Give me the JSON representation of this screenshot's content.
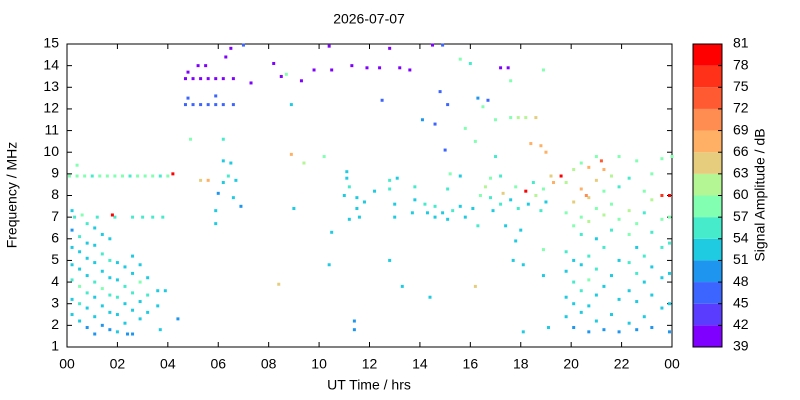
{
  "chart_data": {
    "type": "scatter",
    "title": "2026-07-07",
    "x_label": "UT Time / hrs",
    "y_label": "Frequency / MHz",
    "xlim": [
      0,
      24
    ],
    "xticks": [
      {
        "value": 0,
        "label": "00"
      },
      {
        "value": 2,
        "label": "02"
      },
      {
        "value": 4,
        "label": "04"
      },
      {
        "value": 6,
        "label": "06"
      },
      {
        "value": 8,
        "label": "08"
      },
      10,
      12,
      14,
      16,
      18,
      20,
      22,
      {
        "value": 24,
        "label": "00"
      }
    ],
    "ylim": [
      1,
      15
    ],
    "yticks": [
      1,
      2,
      3,
      4,
      5,
      6,
      7,
      8,
      9,
      10,
      11,
      12,
      13,
      14,
      15
    ],
    "colorbar": {
      "label": "Signal Amplitude / dB",
      "ticks": [
        39,
        42,
        45,
        48,
        51,
        54,
        57,
        60,
        63,
        66,
        69,
        72,
        75,
        78,
        81
      ],
      "colors": [
        "#8000ff",
        "#5a3cff",
        "#3c64ff",
        "#1e96f0",
        "#1ecbe1",
        "#46ebcb",
        "#82ffb0",
        "#b4f594",
        "#e6cd7d",
        "#ffb064",
        "#ff8c50",
        "#ff5a32",
        "#ff3219",
        "#ff0000"
      ]
    },
    "points": [
      [
        0.2,
        2.5,
        51
      ],
      [
        0.2,
        3.2,
        52
      ],
      [
        0.2,
        4.1,
        54
      ],
      [
        0.2,
        4.8,
        51
      ],
      [
        0.2,
        5.6,
        52
      ],
      [
        0.2,
        6.4,
        48
      ],
      [
        0.2,
        7.3,
        52
      ],
      [
        0.5,
        2.2,
        52
      ],
      [
        0.5,
        3.0,
        54
      ],
      [
        0.5,
        3.8,
        57
      ],
      [
        0.5,
        4.6,
        52
      ],
      [
        0.5,
        5.4,
        51
      ],
      [
        0.5,
        6.1,
        54
      ],
      [
        0.8,
        1.9,
        48
      ],
      [
        0.8,
        2.8,
        52
      ],
      [
        0.8,
        3.5,
        54
      ],
      [
        0.8,
        4.3,
        52
      ],
      [
        0.8,
        5.1,
        51
      ],
      [
        0.8,
        5.8,
        52
      ],
      [
        0.8,
        6.7,
        54
      ],
      [
        1.1,
        1.6,
        48
      ],
      [
        1.1,
        2.4,
        51
      ],
      [
        1.1,
        3.3,
        52
      ],
      [
        1.1,
        4.0,
        54
      ],
      [
        1.1,
        4.9,
        52
      ],
      [
        1.1,
        5.7,
        51
      ],
      [
        1.1,
        6.5,
        52
      ],
      [
        1.4,
        2.0,
        48
      ],
      [
        1.4,
        2.9,
        52
      ],
      [
        1.4,
        3.7,
        57
      ],
      [
        1.4,
        4.5,
        52
      ],
      [
        1.4,
        5.3,
        54
      ],
      [
        1.4,
        6.2,
        51
      ],
      [
        1.7,
        1.8,
        48
      ],
      [
        1.7,
        2.6,
        51
      ],
      [
        1.7,
        3.4,
        54
      ],
      [
        1.7,
        4.2,
        52
      ],
      [
        1.7,
        5.0,
        54
      ],
      [
        1.7,
        6.0,
        52
      ],
      [
        2.0,
        1.7,
        51
      ],
      [
        2.0,
        2.5,
        52
      ],
      [
        2.0,
        3.3,
        54
      ],
      [
        2.0,
        4.1,
        52
      ],
      [
        2.0,
        4.9,
        51
      ],
      [
        2.3,
        2.1,
        51
      ],
      [
        2.3,
        3.0,
        52
      ],
      [
        2.3,
        3.8,
        54
      ],
      [
        2.3,
        4.7,
        52
      ],
      [
        2.6,
        1.6,
        48
      ],
      [
        2.6,
        2.7,
        52
      ],
      [
        2.6,
        3.5,
        54
      ],
      [
        2.6,
        4.4,
        51
      ],
      [
        2.6,
        5.2,
        52
      ],
      [
        2.9,
        2.3,
        51
      ],
      [
        2.9,
        3.1,
        52
      ],
      [
        2.9,
        4.0,
        57
      ],
      [
        2.9,
        4.8,
        52
      ],
      [
        3.2,
        2.6,
        52
      ],
      [
        3.2,
        3.4,
        54
      ],
      [
        3.2,
        4.2,
        51
      ],
      [
        3.6,
        3.6,
        52
      ],
      [
        3.6,
        2.9,
        51
      ],
      [
        2.4,
        1.6,
        48
      ],
      [
        3.7,
        1.8,
        51
      ],
      [
        0.1,
        8.9,
        57
      ],
      [
        0.4,
        8.9,
        57
      ],
      [
        0.7,
        8.9,
        57
      ],
      [
        1.0,
        8.9,
        56
      ],
      [
        1.3,
        8.9,
        57
      ],
      [
        1.6,
        8.9,
        57
      ],
      [
        1.9,
        8.9,
        57
      ],
      [
        2.2,
        8.9,
        57
      ],
      [
        2.5,
        8.9,
        56
      ],
      [
        2.8,
        8.9,
        57
      ],
      [
        3.1,
        8.9,
        57
      ],
      [
        3.4,
        8.9,
        57
      ],
      [
        3.7,
        8.9,
        56
      ],
      [
        4.0,
        8.9,
        57
      ],
      [
        4.2,
        9.0,
        78
      ],
      [
        0.3,
        7.0,
        54
      ],
      [
        0.6,
        7.1,
        57
      ],
      [
        1.2,
        7.0,
        54
      ],
      [
        1.9,
        7.0,
        54
      ],
      [
        2.6,
        7.0,
        54
      ],
      [
        3.0,
        7.0,
        54
      ],
      [
        3.4,
        7.0,
        54
      ],
      [
        3.8,
        7.0,
        54
      ],
      [
        1.8,
        7.1,
        78
      ],
      [
        0.4,
        9.4,
        57
      ],
      [
        4.7,
        13.4,
        40
      ],
      [
        5.0,
        13.4,
        40
      ],
      [
        5.3,
        13.4,
        40
      ],
      [
        5.6,
        13.4,
        40
      ],
      [
        5.9,
        13.4,
        40
      ],
      [
        6.2,
        13.4,
        40
      ],
      [
        6.6,
        13.4,
        40
      ],
      [
        4.8,
        13.7,
        40
      ],
      [
        4.7,
        12.2,
        45
      ],
      [
        5.0,
        12.2,
        45
      ],
      [
        5.3,
        12.2,
        45
      ],
      [
        5.6,
        12.2,
        45
      ],
      [
        5.9,
        12.2,
        45
      ],
      [
        6.2,
        12.2,
        45
      ],
      [
        6.6,
        12.2,
        45
      ],
      [
        4.8,
        12.5,
        45
      ],
      [
        5.2,
        14.0,
        40
      ],
      [
        5.5,
        14.0,
        40
      ],
      [
        6.3,
        14.4,
        40
      ],
      [
        6.5,
        14.8,
        40
      ],
      [
        5.9,
        12.6,
        45
      ],
      [
        6.2,
        10.6,
        54
      ],
      [
        4.9,
        10.6,
        57
      ],
      [
        6.2,
        9.6,
        52
      ],
      [
        6.5,
        9.5,
        52
      ],
      [
        6.4,
        8.9,
        54
      ],
      [
        6.7,
        8.7,
        52
      ],
      [
        6.2,
        8.6,
        52
      ],
      [
        6.0,
        8.1,
        48
      ],
      [
        6.6,
        7.9,
        52
      ],
      [
        6.9,
        7.5,
        48
      ],
      [
        5.9,
        7.3,
        51
      ],
      [
        5.9,
        6.7,
        51
      ],
      [
        5.3,
        8.7,
        63
      ],
      [
        5.6,
        8.7,
        66
      ],
      [
        7.0,
        14.95,
        45
      ],
      [
        7.3,
        13.2,
        40
      ],
      [
        8.2,
        14.1,
        40
      ],
      [
        8.5,
        13.5,
        40
      ],
      [
        8.7,
        13.6,
        57
      ],
      [
        9.3,
        13.3,
        40
      ],
      [
        9.8,
        13.8,
        40
      ],
      [
        10.5,
        13.8,
        40
      ],
      [
        10.4,
        14.9,
        40
      ],
      [
        11.3,
        14.0,
        40
      ],
      [
        11.9,
        13.9,
        40
      ],
      [
        12.4,
        13.9,
        40
      ],
      [
        12.8,
        14.8,
        40
      ],
      [
        13.2,
        13.9,
        40
      ],
      [
        13.6,
        13.8,
        40
      ],
      [
        14.5,
        14.95,
        40
      ],
      [
        14.9,
        14.95,
        45
      ],
      [
        15.1,
        12.2,
        45
      ],
      [
        14.8,
        12.8,
        45
      ],
      [
        15.6,
        14.3,
        57
      ],
      [
        16.0,
        14.1,
        54
      ],
      [
        16.3,
        12.5,
        48
      ],
      [
        16.7,
        12.4,
        45
      ],
      [
        17.2,
        13.9,
        40
      ],
      [
        17.5,
        13.9,
        40
      ],
      [
        17.6,
        13.3,
        57
      ],
      [
        18.9,
        13.8,
        57
      ],
      [
        14.6,
        11.3,
        45
      ],
      [
        15.0,
        10.1,
        45
      ],
      [
        16.5,
        12.1,
        57
      ],
      [
        17.0,
        11.5,
        57
      ],
      [
        8.9,
        12.2,
        51
      ],
      [
        12.5,
        12.4,
        45
      ],
      [
        14.1,
        11.5,
        48
      ],
      [
        15.8,
        11.1,
        57
      ],
      [
        17.6,
        11.6,
        57
      ],
      [
        17.9,
        11.6,
        60
      ],
      [
        18.2,
        11.6,
        60
      ],
      [
        18.6,
        11.6,
        63
      ],
      [
        18.4,
        10.4,
        66
      ],
      [
        18.8,
        10.3,
        66
      ],
      [
        19.0,
        10.0,
        66
      ],
      [
        17.0,
        9.8,
        54
      ],
      [
        8.9,
        9.9,
        66
      ],
      [
        9.4,
        9.5,
        60
      ],
      [
        10.2,
        9.8,
        57
      ],
      [
        9.0,
        7.4,
        51
      ],
      [
        10.4,
        4.8,
        51
      ],
      [
        10.5,
        6.3,
        51
      ],
      [
        11.1,
        9.1,
        51
      ],
      [
        11.1,
        8.8,
        52
      ],
      [
        11.2,
        8.4,
        54
      ],
      [
        11.0,
        8.0,
        51
      ],
      [
        11.5,
        7.9,
        52
      ],
      [
        11.5,
        7.4,
        52
      ],
      [
        11.6,
        7.0,
        51
      ],
      [
        11.8,
        7.7,
        51
      ],
      [
        11.2,
        6.9,
        51
      ],
      [
        11.4,
        2.2,
        48
      ],
      [
        11.4,
        1.8,
        48
      ],
      [
        12.2,
        8.2,
        51
      ],
      [
        12.8,
        8.7,
        54
      ],
      [
        12.8,
        8.3,
        54
      ],
      [
        13.0,
        7.6,
        51
      ],
      [
        13.0,
        7.0,
        52
      ],
      [
        13.1,
        8.8,
        52
      ],
      [
        12.8,
        5.0,
        51
      ],
      [
        13.8,
        7.8,
        52
      ],
      [
        13.7,
        7.2,
        51
      ],
      [
        13.8,
        8.4,
        54
      ],
      [
        14.2,
        7.6,
        54
      ],
      [
        14.3,
        7.2,
        52
      ],
      [
        14.6,
        7.5,
        54
      ],
      [
        14.6,
        7.0,
        51
      ],
      [
        14.9,
        7.2,
        52
      ],
      [
        15.1,
        6.9,
        52
      ],
      [
        15.1,
        8.3,
        54
      ],
      [
        15.3,
        7.3,
        54
      ],
      [
        15.2,
        9.0,
        57
      ],
      [
        15.6,
        8.9,
        52
      ],
      [
        15.6,
        7.5,
        51
      ],
      [
        15.8,
        7.0,
        52
      ],
      [
        16.1,
        7.4,
        52
      ],
      [
        16.3,
        6.6,
        54
      ],
      [
        16.4,
        8.0,
        57
      ],
      [
        16.6,
        8.4,
        60
      ],
      [
        16.8,
        7.9,
        54
      ],
      [
        16.8,
        8.8,
        57
      ],
      [
        16.9,
        7.3,
        52
      ],
      [
        17.2,
        7.6,
        54
      ],
      [
        17.3,
        8.1,
        63
      ],
      [
        17.2,
        8.9,
        54
      ],
      [
        17.4,
        6.6,
        51
      ],
      [
        16.2,
        3.8,
        63
      ],
      [
        14.4,
        3.3,
        51
      ],
      [
        13.3,
        3.8,
        51
      ],
      [
        16.2,
        10.5,
        57
      ],
      [
        17.6,
        7.8,
        52
      ],
      [
        17.8,
        8.4,
        57
      ],
      [
        17.9,
        7.4,
        54
      ],
      [
        18.2,
        8.2,
        78
      ],
      [
        18.3,
        7.6,
        52
      ],
      [
        18.5,
        8.6,
        54
      ],
      [
        18.6,
        8.0,
        60
      ],
      [
        18.8,
        7.3,
        54
      ],
      [
        18.9,
        8.3,
        57
      ],
      [
        19.0,
        7.7,
        52
      ],
      [
        19.3,
        8.6,
        66
      ],
      [
        19.2,
        8.9,
        63
      ],
      [
        18.0,
        6.4,
        52
      ],
      [
        17.8,
        5.9,
        51
      ],
      [
        17.7,
        5.0,
        51
      ],
      [
        18.1,
        4.8,
        51
      ],
      [
        18.9,
        5.5,
        57
      ],
      [
        18.9,
        4.3,
        51
      ],
      [
        19.8,
        2.4,
        51
      ],
      [
        19.8,
        3.3,
        52
      ],
      [
        19.8,
        4.5,
        51
      ],
      [
        19.8,
        5.4,
        54
      ],
      [
        19.8,
        7.2,
        57
      ],
      [
        19.8,
        8.6,
        60
      ],
      [
        20.1,
        1.9,
        48
      ],
      [
        20.1,
        3.0,
        52
      ],
      [
        20.1,
        4.0,
        54
      ],
      [
        20.1,
        5.0,
        52
      ],
      [
        20.1,
        6.6,
        57
      ],
      [
        20.1,
        7.7,
        63
      ],
      [
        20.1,
        9.2,
        60
      ],
      [
        20.4,
        2.6,
        51
      ],
      [
        20.4,
        3.6,
        54
      ],
      [
        20.4,
        4.8,
        51
      ],
      [
        20.4,
        6.2,
        54
      ],
      [
        20.4,
        7.0,
        57
      ],
      [
        20.4,
        8.3,
        66
      ],
      [
        20.4,
        9.5,
        57
      ],
      [
        20.7,
        1.7,
        48
      ],
      [
        20.7,
        2.9,
        52
      ],
      [
        20.7,
        4.1,
        57
      ],
      [
        20.7,
        5.2,
        54
      ],
      [
        20.7,
        6.8,
        60
      ],
      [
        20.7,
        7.9,
        63
      ],
      [
        20.7,
        9.3,
        66
      ],
      [
        21.0,
        2.2,
        51
      ],
      [
        21.0,
        3.4,
        52
      ],
      [
        21.0,
        4.6,
        54
      ],
      [
        21.0,
        6.0,
        52
      ],
      [
        21.0,
        7.4,
        57
      ],
      [
        21.0,
        8.7,
        63
      ],
      [
        21.0,
        9.8,
        57
      ],
      [
        21.3,
        1.8,
        48
      ],
      [
        21.3,
        3.8,
        52
      ],
      [
        21.3,
        5.6,
        54
      ],
      [
        21.3,
        7.1,
        60
      ],
      [
        21.3,
        8.2,
        57
      ],
      [
        21.3,
        9.2,
        66
      ],
      [
        21.6,
        2.5,
        51
      ],
      [
        21.6,
        4.3,
        52
      ],
      [
        21.6,
        6.4,
        54
      ],
      [
        21.6,
        7.6,
        57
      ],
      [
        21.6,
        8.9,
        60
      ],
      [
        21.9,
        1.7,
        48
      ],
      [
        21.9,
        3.2,
        51
      ],
      [
        21.9,
        5.0,
        52
      ],
      [
        21.9,
        6.9,
        57
      ],
      [
        21.9,
        8.4,
        54
      ],
      [
        21.9,
        9.8,
        57
      ],
      [
        22.3,
        2.1,
        51
      ],
      [
        22.3,
        3.6,
        52
      ],
      [
        22.3,
        4.9,
        54
      ],
      [
        22.3,
        6.2,
        57
      ],
      [
        22.3,
        7.3,
        60
      ],
      [
        22.3,
        8.8,
        54
      ],
      [
        22.6,
        1.8,
        48
      ],
      [
        22.6,
        3.1,
        52
      ],
      [
        22.6,
        4.4,
        54
      ],
      [
        22.6,
        5.6,
        52
      ],
      [
        22.6,
        6.7,
        57
      ],
      [
        22.6,
        9.6,
        57
      ],
      [
        22.9,
        2.4,
        51
      ],
      [
        22.9,
        4.0,
        52
      ],
      [
        22.9,
        5.2,
        54
      ],
      [
        22.9,
        7.2,
        54
      ],
      [
        22.9,
        8.2,
        57
      ],
      [
        23.2,
        1.9,
        48
      ],
      [
        23.2,
        3.4,
        51
      ],
      [
        23.2,
        4.7,
        52
      ],
      [
        23.2,
        6.3,
        54
      ],
      [
        23.2,
        7.8,
        60
      ],
      [
        23.2,
        9.0,
        57
      ],
      [
        23.6,
        2.8,
        51
      ],
      [
        23.6,
        4.2,
        52
      ],
      [
        23.6,
        5.6,
        54
      ],
      [
        23.6,
        6.9,
        57
      ],
      [
        23.6,
        8.0,
        75
      ],
      [
        23.6,
        9.7,
        57
      ],
      [
        23.9,
        1.7,
        48
      ],
      [
        23.9,
        3.0,
        51
      ],
      [
        23.9,
        4.4,
        52
      ],
      [
        23.9,
        5.8,
        54
      ],
      [
        23.9,
        7.0,
        57
      ],
      [
        23.9,
        8.0,
        81
      ],
      [
        21.2,
        9.6,
        72
      ],
      [
        19.6,
        8.9,
        78
      ],
      [
        20.6,
        8.0,
        69
      ],
      [
        3.9,
        3.6,
        52
      ],
      [
        18.1,
        1.7,
        51
      ],
      [
        19.1,
        1.9,
        51
      ],
      [
        8.4,
        3.9,
        63
      ],
      [
        4.4,
        2.3,
        48
      ],
      [
        24.0,
        9.8,
        57
      ]
    ]
  }
}
